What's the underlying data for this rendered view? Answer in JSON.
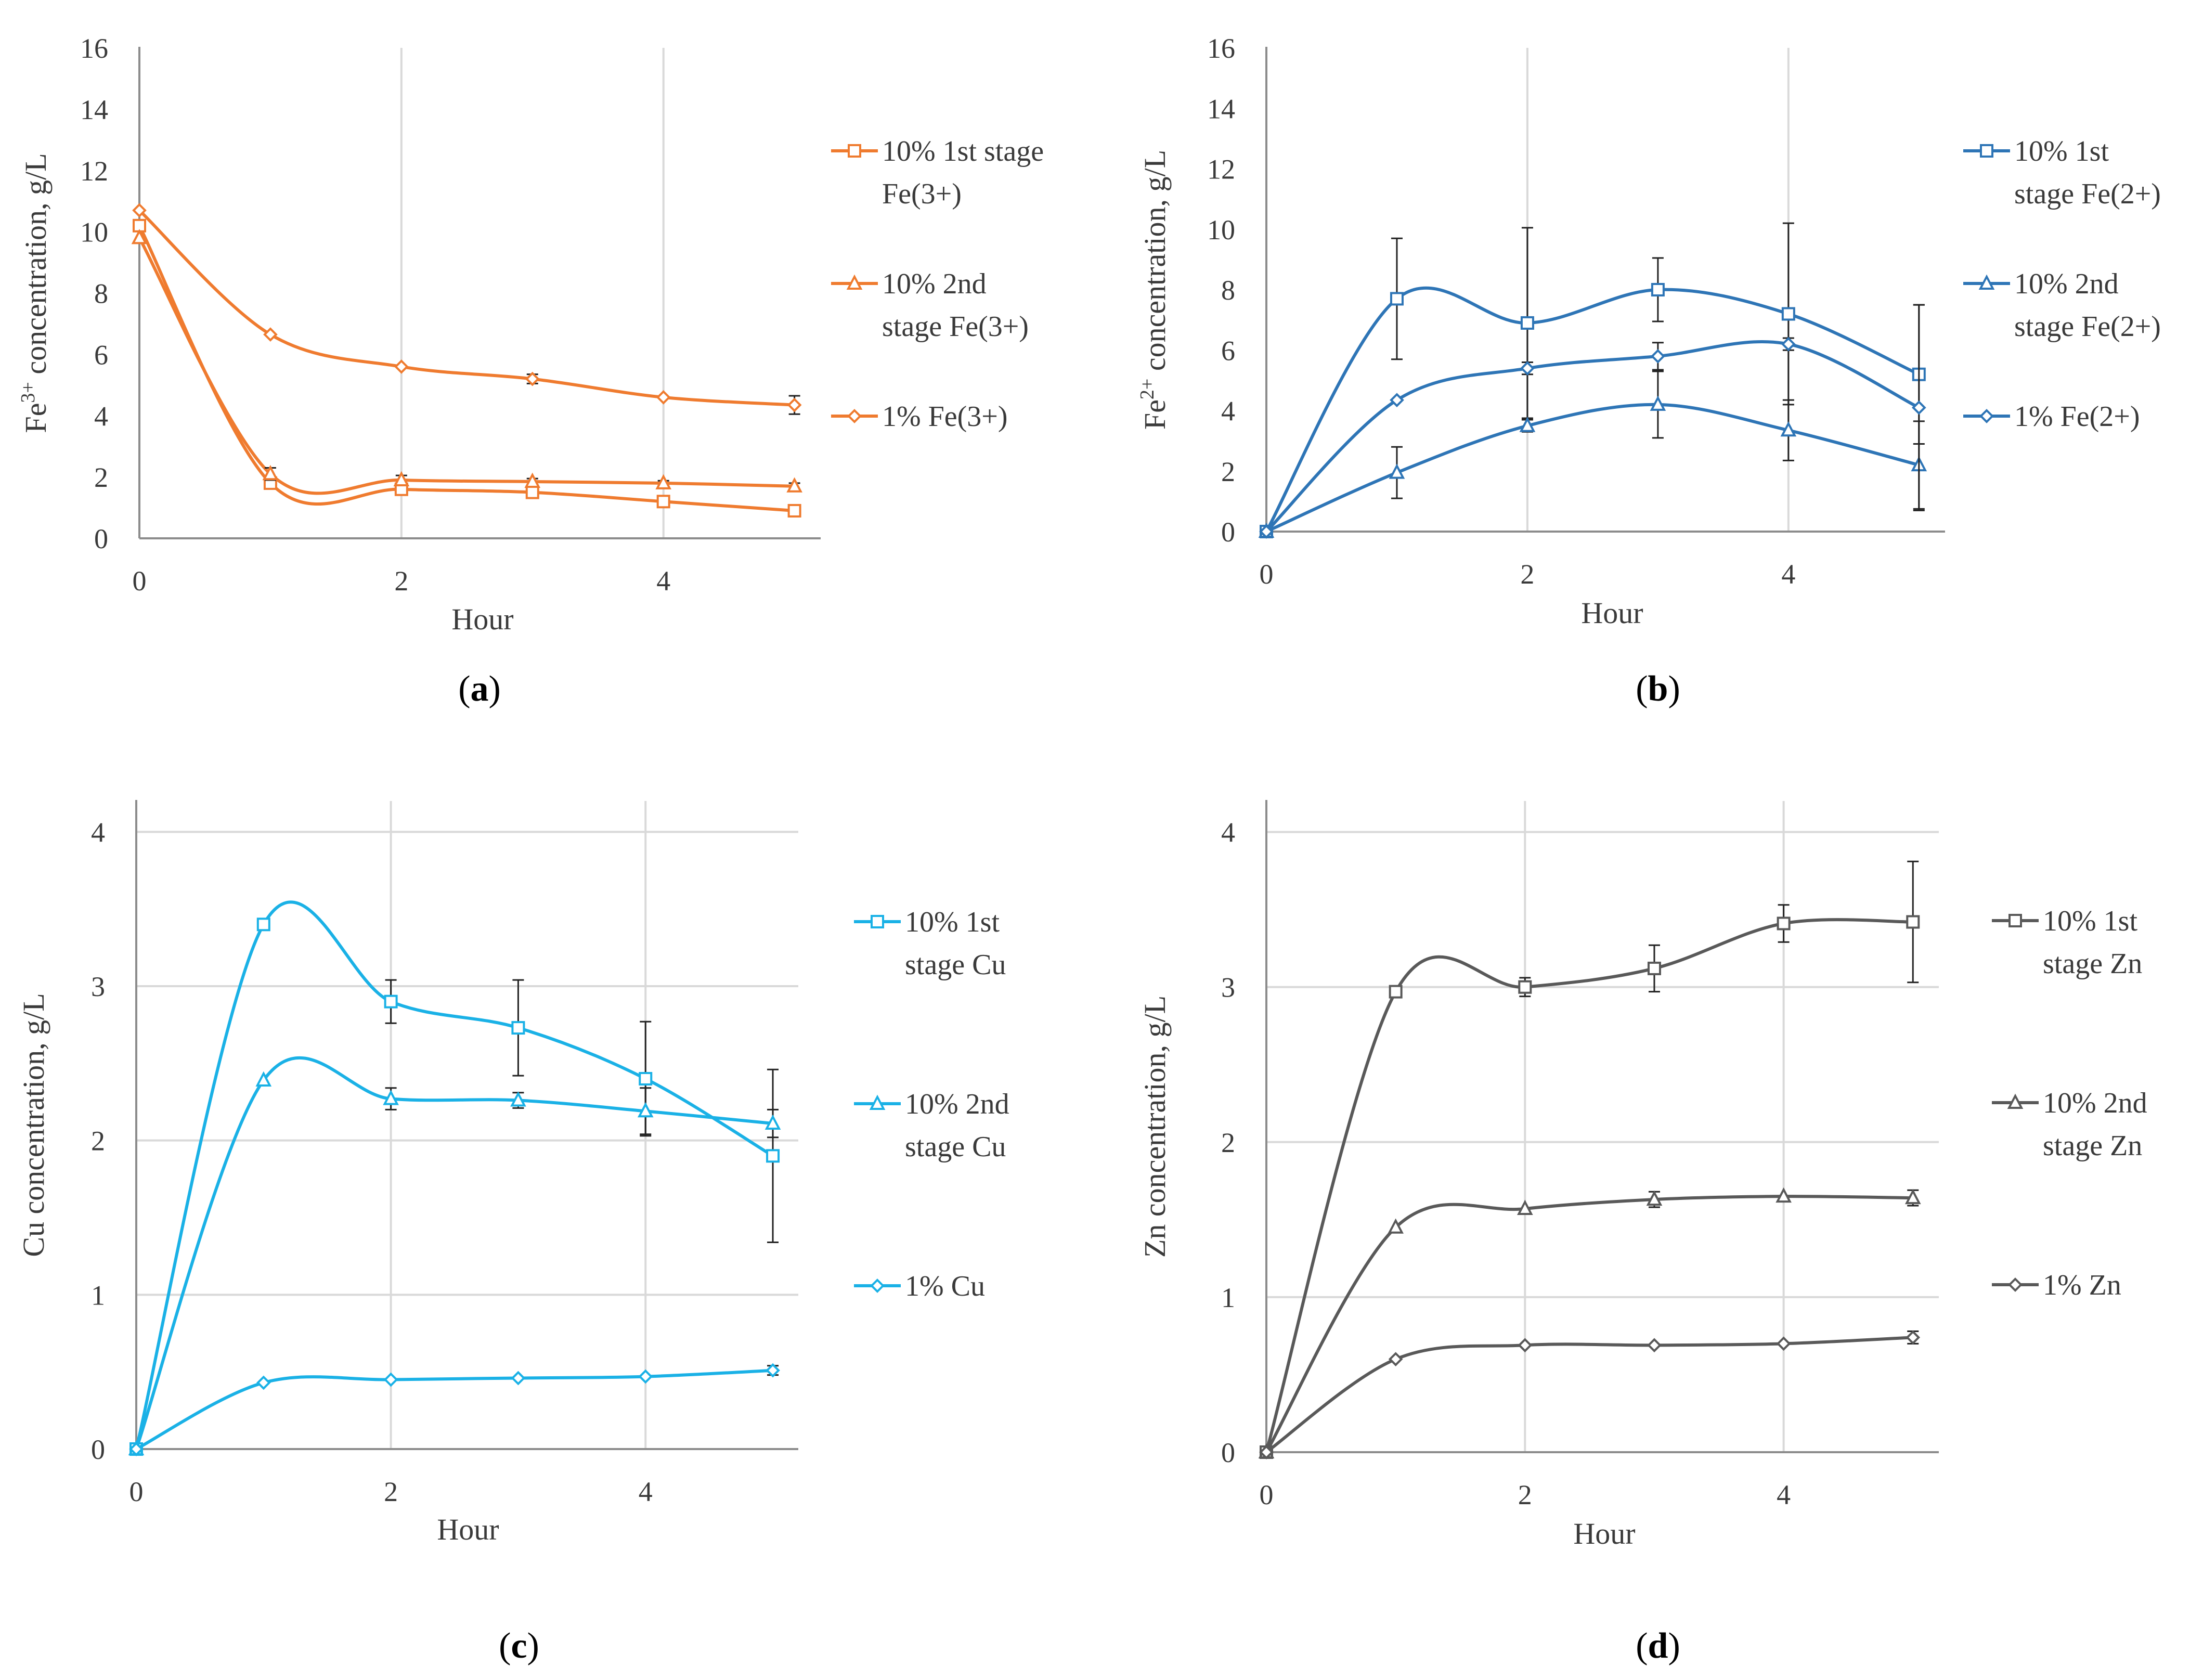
{
  "figure": {
    "captions": [
      "a",
      "b",
      "c",
      "d"
    ]
  },
  "chart_data": [
    {
      "id": "a",
      "type": "line",
      "title": "",
      "xlabel": "Hour",
      "ylabel_parts": [
        "Fe",
        "3+",
        " concentration, g/L"
      ],
      "xlim": [
        0,
        5.2
      ],
      "ylim": [
        0,
        16
      ],
      "xticks": [
        0,
        2,
        4
      ],
      "yticks": [
        0,
        2,
        4,
        6,
        8,
        10,
        12,
        14,
        16
      ],
      "xgrid": true,
      "ygrid": false,
      "color": "#ef7b2f",
      "series": [
        {
          "name": "10% 1st stage Fe(3+)",
          "legend_lines": [
            "10% 1st stage",
            "Fe(3+)"
          ],
          "marker": "square",
          "x": [
            0,
            1,
            2,
            3,
            4,
            5
          ],
          "values": [
            10.2,
            1.8,
            1.6,
            1.5,
            1.2,
            0.9
          ],
          "err": [
            0,
            0,
            0,
            0,
            0,
            0
          ]
        },
        {
          "name": "10% 2nd stage Fe(3+)",
          "legend_lines": [
            "10% 2nd",
            "stage Fe(3+)"
          ],
          "marker": "triangle",
          "x": [
            0,
            1,
            2,
            3,
            4,
            5
          ],
          "values": [
            9.8,
            2.1,
            1.9,
            1.85,
            1.8,
            1.7
          ],
          "err": [
            0,
            0.2,
            0.15,
            0.1,
            0.08,
            0.1
          ]
        },
        {
          "name": "1% Fe(3+)",
          "legend_lines": [
            "1% Fe(3+)"
          ],
          "marker": "diamond",
          "x": [
            0,
            1,
            2,
            3,
            4,
            5
          ],
          "values": [
            10.7,
            6.65,
            5.6,
            5.2,
            4.6,
            4.35
          ],
          "err": [
            0,
            0,
            0,
            0.15,
            0,
            0.3
          ]
        }
      ]
    },
    {
      "id": "b",
      "type": "line",
      "title": "",
      "xlabel": "Hour",
      "ylabel_parts": [
        "Fe",
        "2+",
        " concentration, g/L"
      ],
      "xlim": [
        0,
        5.2
      ],
      "ylim": [
        0,
        16
      ],
      "xticks": [
        0,
        2,
        4
      ],
      "yticks": [
        0,
        2,
        4,
        6,
        8,
        10,
        12,
        14,
        16
      ],
      "xgrid": true,
      "ygrid": false,
      "color": "#2e75b6",
      "series": [
        {
          "name": "10% 1st stage Fe(2+)",
          "legend_lines": [
            "10% 1st",
            "stage Fe(2+)"
          ],
          "marker": "square",
          "x": [
            0,
            1,
            2,
            3,
            4,
            5
          ],
          "values": [
            0,
            7.7,
            6.9,
            8.0,
            7.2,
            5.2
          ],
          "err": [
            0,
            2.0,
            3.15,
            1.05,
            3.0,
            2.3
          ]
        },
        {
          "name": "10% 2nd stage Fe(2+)",
          "legend_lines": [
            "10% 2nd",
            "stage Fe(2+)"
          ],
          "marker": "triangle",
          "x": [
            0,
            1,
            2,
            3,
            4,
            5
          ],
          "values": [
            0,
            1.95,
            3.5,
            4.2,
            3.35,
            2.2
          ],
          "err": [
            0,
            0.85,
            0.2,
            1.1,
            1.0,
            1.45
          ]
        },
        {
          "name": "1% Fe(2+)",
          "legend_lines": [
            "1% Fe(2+)"
          ],
          "marker": "diamond",
          "x": [
            0,
            1,
            2,
            3,
            4,
            5
          ],
          "values": [
            0,
            4.35,
            5.4,
            5.8,
            6.2,
            4.1
          ],
          "err": [
            0,
            0,
            0.2,
            0.45,
            0.2,
            3.4
          ]
        }
      ]
    },
    {
      "id": "c",
      "type": "line",
      "title": "",
      "xlabel": "Hour",
      "ylabel_parts": [
        "Cu concentration, g/L"
      ],
      "xlim": [
        0,
        5.2
      ],
      "ylim": [
        0,
        4.2
      ],
      "xticks": [
        0,
        2,
        4
      ],
      "yticks": [
        0,
        1,
        2,
        3,
        4
      ],
      "xgrid": true,
      "ygrid": true,
      "color": "#1ab1e6",
      "series": [
        {
          "name": "10% 1st stage Cu",
          "legend_lines": [
            "10% 1st",
            "stage Cu"
          ],
          "marker": "square",
          "x": [
            0,
            1,
            2,
            3,
            4,
            5
          ],
          "values": [
            0,
            3.4,
            2.9,
            2.73,
            2.4,
            1.9
          ],
          "err": [
            0,
            0,
            0.14,
            0.31,
            0.37,
            0.56
          ]
        },
        {
          "name": "10% 2nd stage Cu",
          "legend_lines": [
            "10% 2nd",
            "stage Cu"
          ],
          "marker": "triangle",
          "x": [
            0,
            1,
            2,
            3,
            4,
            5
          ],
          "values": [
            0,
            2.39,
            2.27,
            2.26,
            2.19,
            2.11
          ],
          "err": [
            0,
            0,
            0.07,
            0.05,
            0.15,
            0.09
          ]
        },
        {
          "name": "1% Cu",
          "legend_lines": [
            "1% Cu"
          ],
          "marker": "diamond",
          "x": [
            0,
            1,
            2,
            3,
            4,
            5
          ],
          "values": [
            0,
            0.43,
            0.45,
            0.46,
            0.47,
            0.51
          ],
          "err": [
            0,
            0,
            0,
            0,
            0,
            0.03
          ]
        }
      ]
    },
    {
      "id": "d",
      "type": "line",
      "title": "",
      "xlabel": "Hour",
      "ylabel_parts": [
        "Zn concentration, g/L"
      ],
      "xlim": [
        0,
        5.2
      ],
      "ylim": [
        0,
        4.2
      ],
      "xticks": [
        0,
        2,
        4
      ],
      "yticks": [
        0,
        1,
        2,
        3,
        4
      ],
      "xgrid": true,
      "ygrid": true,
      "color": "#595959",
      "series": [
        {
          "name": "10% 1st stage Zn",
          "legend_lines": [
            "10% 1st",
            "stage Zn"
          ],
          "marker": "square",
          "x": [
            0,
            1,
            2,
            3,
            4,
            5
          ],
          "values": [
            0,
            2.97,
            3.0,
            3.12,
            3.41,
            3.42
          ],
          "err": [
            0,
            0,
            0.06,
            0.15,
            0.12,
            0.39
          ]
        },
        {
          "name": "10% 2nd stage Zn",
          "legend_lines": [
            "10% 2nd",
            "stage Zn"
          ],
          "marker": "triangle",
          "x": [
            0,
            1,
            2,
            3,
            4,
            5
          ],
          "values": [
            0,
            1.45,
            1.57,
            1.63,
            1.65,
            1.64
          ],
          "err": [
            0,
            0,
            0,
            0.05,
            0,
            0.05
          ]
        },
        {
          "name": "1% Zn",
          "legend_lines": [
            "1% Zn"
          ],
          "marker": "diamond",
          "x": [
            0,
            1,
            2,
            3,
            4,
            5
          ],
          "values": [
            0,
            0.6,
            0.69,
            0.69,
            0.7,
            0.74
          ],
          "err": [
            0,
            0,
            0,
            0,
            0,
            0.04
          ]
        }
      ]
    }
  ]
}
